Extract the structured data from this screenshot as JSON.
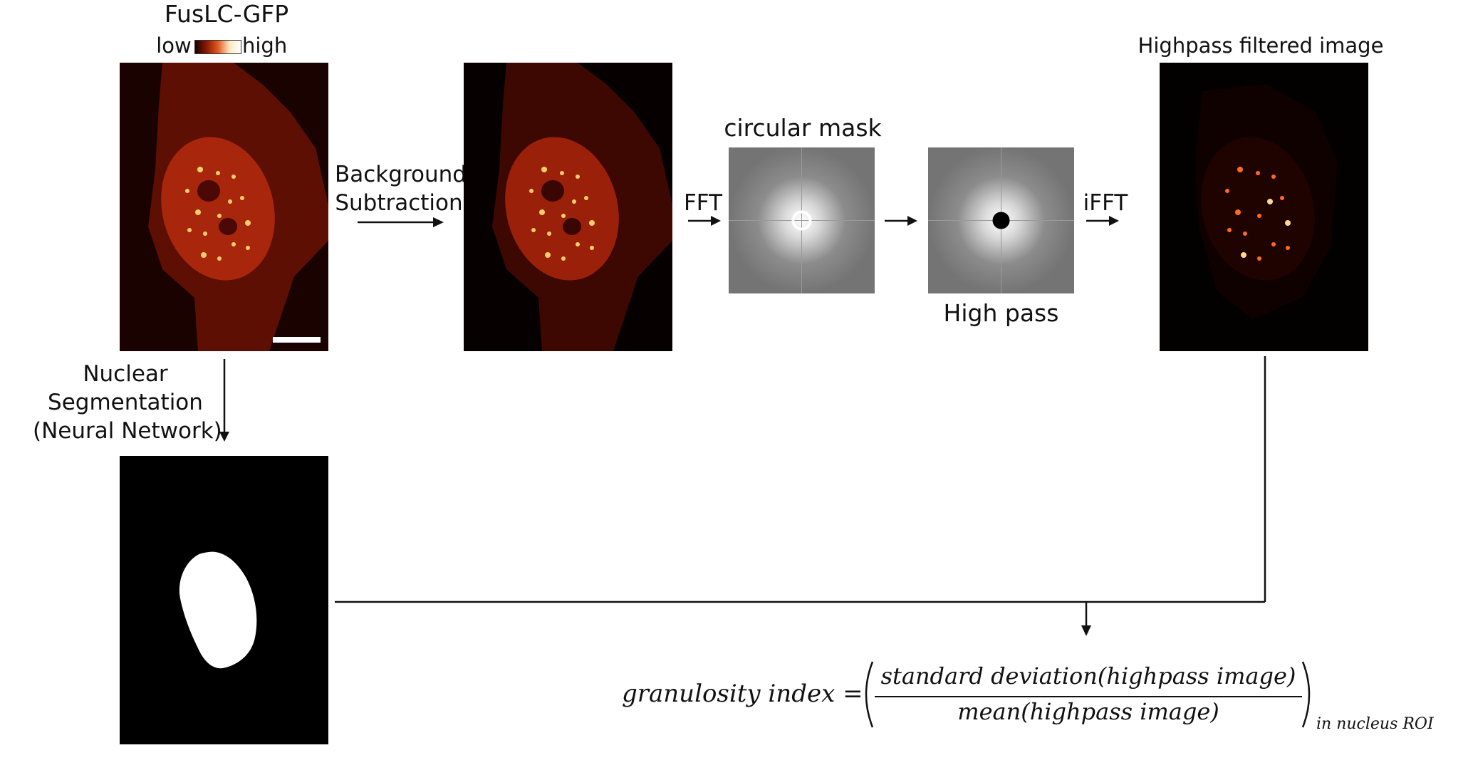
{
  "title": "FusLC-GFP",
  "colorbar": {
    "low": "low",
    "high": "high"
  },
  "steps": {
    "background_subtraction": [
      "Background",
      "Subtraction"
    ],
    "fft": "FFT",
    "ifft": "iFFT",
    "nuclear_segmentation": [
      "Nuclear",
      "Segmentation",
      "(Neural Network)"
    ]
  },
  "panels": {
    "circular_mask": "circular mask",
    "high_pass": "High pass",
    "highpass_filtered": "Highpass filtered image"
  },
  "formula": {
    "lhs": "granulosity index =",
    "numerator": "standard deviation(highpass image)",
    "denominator": "mean(highpass image)",
    "subscript": "in nucleus ROI"
  },
  "colors": {
    "background": "#ffffff",
    "image_dark": "#0d0000",
    "cell": "#5a0d03",
    "nucleus": "#a5240a",
    "foci": "#ffd27a",
    "fft_gray": "#7b7b7b",
    "mask": "#ffffff"
  }
}
